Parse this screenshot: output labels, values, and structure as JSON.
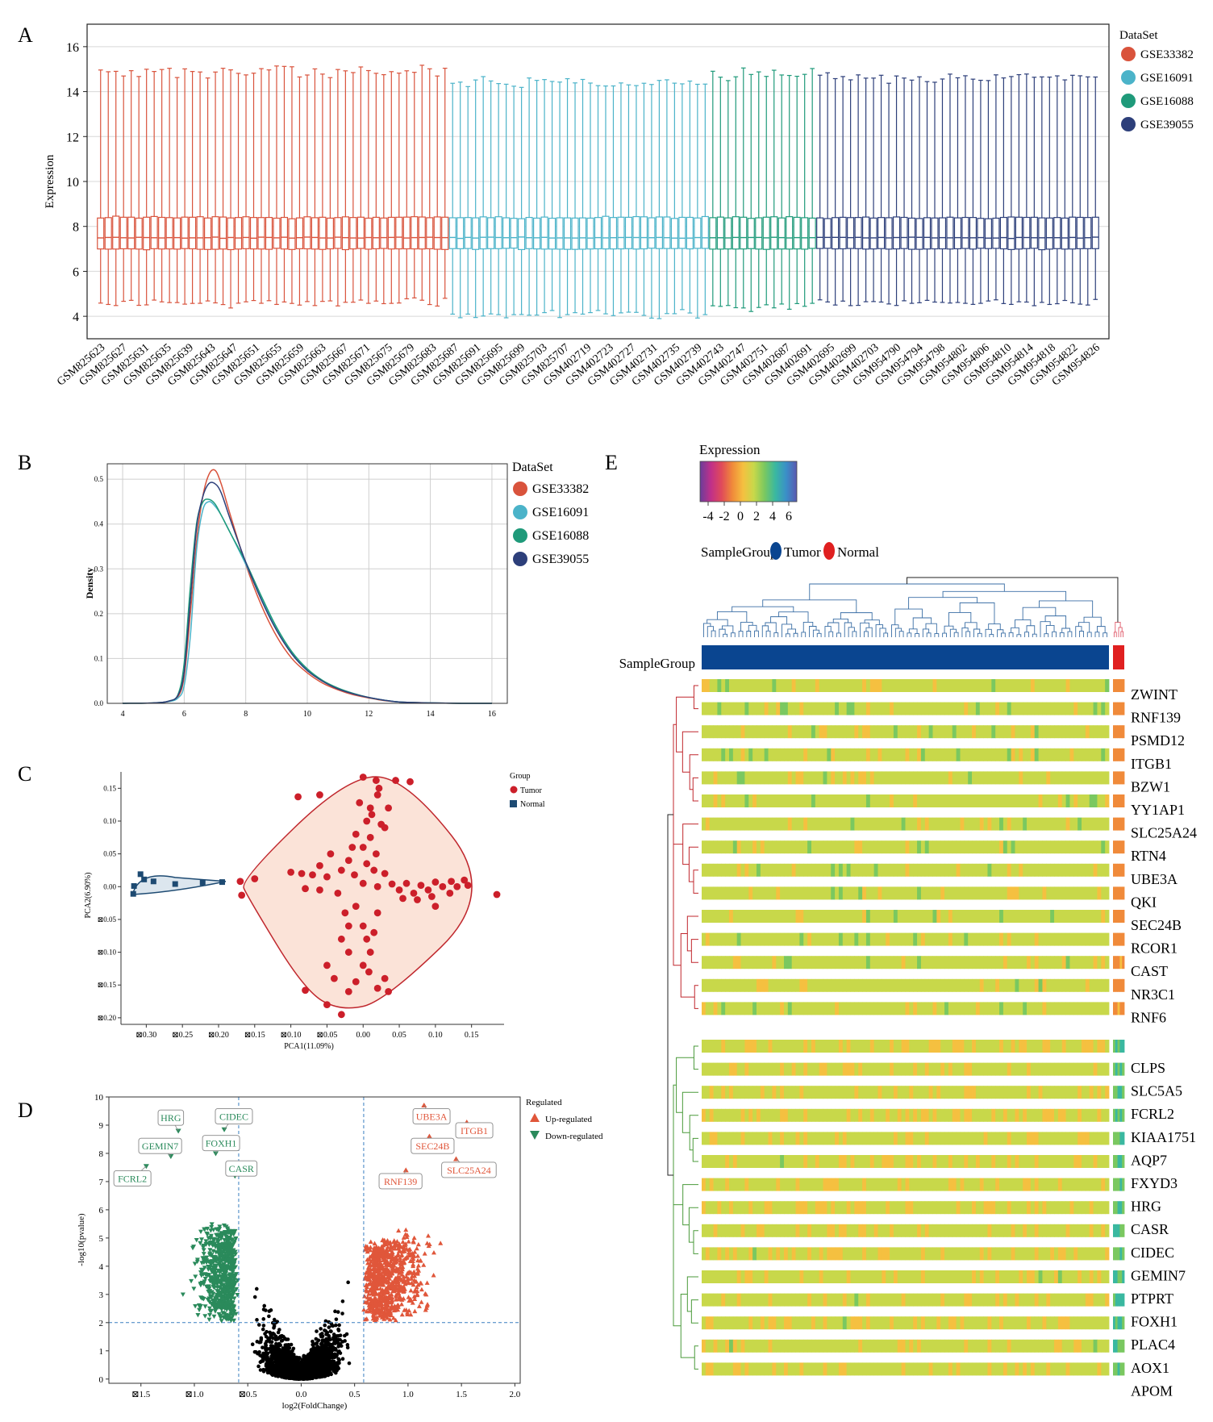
{
  "panels": {
    "a": {
      "label": "A"
    },
    "b": {
      "label": "B"
    },
    "c": {
      "label": "C"
    },
    "d": {
      "label": "D"
    },
    "e": {
      "label": "E"
    }
  },
  "colors": {
    "GSE33382": "#d9533c",
    "GSE16091": "#4bb3c9",
    "GSE16088": "#1f9a7a",
    "GSE39055": "#2d3f7a",
    "tumor": "#cc1f2a",
    "normal": "#1d4a72",
    "up": "#e0563a",
    "down": "#2a8a5b",
    "ns": "#000000",
    "sg_tumor": "#0a4590",
    "sg_normal": "#e02020",
    "dendro_up": "#c0272d",
    "dendro_down": "#4a9a3a",
    "col_dendro": "#3a6ea5"
  },
  "chart_data": [
    {
      "id": "A",
      "type": "box",
      "ylabel": "Expression",
      "ylim": [
        3,
        17
      ],
      "yticks": [
        4,
        6,
        8,
        10,
        12,
        14,
        16
      ],
      "legend": {
        "title": "DataSet",
        "entries": [
          "GSE33382",
          "GSE16091",
          "GSE16088",
          "GSE39055"
        ],
        "placement": "right"
      },
      "series": [
        {
          "name": "GSE33382",
          "count": 46,
          "whisker_low": 4.6,
          "q1": 7.0,
          "median": 7.5,
          "q3": 8.4,
          "whisker_high": 14.9
        },
        {
          "name": "GSE16091",
          "count": 34,
          "whisker_low": 4.1,
          "q1": 7.0,
          "median": 7.5,
          "q3": 8.4,
          "whisker_high": 14.4
        },
        {
          "name": "GSE16088",
          "count": 14,
          "whisker_low": 4.4,
          "q1": 7.0,
          "median": 7.5,
          "q3": 8.4,
          "whisker_high": 14.8
        },
        {
          "name": "GSE39055",
          "count": 37,
          "whisker_low": 4.6,
          "q1": 7.0,
          "median": 7.5,
          "q3": 8.4,
          "whisker_high": 14.6
        }
      ],
      "tick_labels": [
        "GSM825623",
        "GSM825627",
        "GSM825631",
        "GSM825635",
        "GSM825639",
        "GSM825643",
        "GSM825647",
        "GSM825651",
        "GSM825655",
        "GSM825659",
        "GSM825663",
        "GSM825667",
        "GSM825671",
        "GSM825675",
        "GSM825679",
        "GSM825683",
        "GSM825687",
        "GSM825691",
        "GSM825695",
        "GSM825699",
        "GSM825703",
        "GSM825707",
        "GSM402719",
        "GSM402723",
        "GSM402727",
        "GSM402731",
        "GSM402735",
        "GSM402739",
        "GSM402743",
        "GSM402747",
        "GSM402751",
        "GSM402687",
        "GSM402691",
        "GSM402695",
        "GSM402699",
        "GSM402703",
        "GSM954790",
        "GSM954794",
        "GSM954798",
        "GSM954802",
        "GSM954806",
        "GSM954810",
        "GSM954814",
        "GSM954818",
        "GSM954822",
        "GSM954826"
      ]
    },
    {
      "id": "B",
      "type": "line",
      "ylabel": "Density",
      "xlim": [
        3.5,
        16.5
      ],
      "ylim": [
        0,
        0.52
      ],
      "xticks": [
        4,
        6,
        8,
        10,
        12,
        14,
        16
      ],
      "yticks": [
        "0.0",
        "0.1",
        "0.2",
        "0.3",
        "0.4",
        "0.5"
      ],
      "legend": {
        "title": "DataSet",
        "entries": [
          "GSE33382",
          "GSE16091",
          "GSE16088",
          "GSE39055"
        ],
        "placement": "right"
      },
      "x": [
        4,
        5,
        5.5,
        5.8,
        6.0,
        6.2,
        6.4,
        6.6,
        6.8,
        7.0,
        7.2,
        7.5,
        8.0,
        8.5,
        9.0,
        9.5,
        10.0,
        10.5,
        11.0,
        11.5,
        12.0,
        12.5,
        13.0,
        14.0,
        15.0,
        16.0
      ],
      "series": [
        {
          "name": "GSE33382",
          "values": [
            0,
            0.001,
            0.004,
            0.015,
            0.06,
            0.2,
            0.36,
            0.46,
            0.51,
            0.52,
            0.49,
            0.42,
            0.31,
            0.22,
            0.15,
            0.1,
            0.068,
            0.045,
            0.03,
            0.019,
            0.012,
            0.006,
            0.003,
            0.001,
            0,
            0
          ]
        },
        {
          "name": "GSE16091",
          "values": [
            0,
            0.001,
            0.004,
            0.012,
            0.04,
            0.15,
            0.34,
            0.43,
            0.45,
            0.44,
            0.42,
            0.38,
            0.31,
            0.235,
            0.165,
            0.112,
            0.075,
            0.05,
            0.033,
            0.021,
            0.013,
            0.007,
            0.003,
            0.001,
            0,
            0
          ]
        },
        {
          "name": "GSE16088",
          "values": [
            0,
            0.001,
            0.005,
            0.02,
            0.09,
            0.26,
            0.4,
            0.448,
            0.455,
            0.445,
            0.42,
            0.38,
            0.315,
            0.24,
            0.17,
            0.115,
            0.077,
            0.051,
            0.034,
            0.022,
            0.013,
            0.007,
            0.003,
            0.001,
            0,
            0
          ]
        },
        {
          "name": "GSE39055",
          "values": [
            0,
            0.001,
            0.005,
            0.018,
            0.07,
            0.23,
            0.39,
            0.46,
            0.49,
            0.49,
            0.47,
            0.41,
            0.315,
            0.232,
            0.163,
            0.11,
            0.073,
            0.049,
            0.032,
            0.021,
            0.013,
            0.007,
            0.003,
            0.001,
            0,
            0
          ]
        }
      ]
    },
    {
      "id": "C",
      "type": "scatter",
      "xlabel": "PCA1(11.09%)",
      "ylabel": "PCA2(6.90%)",
      "xlim": [
        -0.335,
        0.195
      ],
      "ylim": [
        -0.21,
        0.175
      ],
      "xticks": [
        -0.3,
        -0.25,
        -0.2,
        -0.15,
        -0.1,
        -0.05,
        0,
        0.05,
        0.1,
        0.15
      ],
      "xtick_labels": [
        "⊠0.30",
        "⊠0.25",
        "⊠0.20",
        "⊠0.15",
        "⊠0.10",
        "⊠0.05",
        "0.00",
        "0.05",
        "0.10",
        "0.15"
      ],
      "yticks": [
        0.15,
        0.1,
        0.05,
        0,
        -0.05,
        -0.1,
        -0.15,
        -0.2
      ],
      "ytick_labels": [
        "0.15",
        "0.10",
        "0.05",
        "0.00",
        "⊠0.05",
        "⊠0.10",
        "⊠0.15",
        "⊠0.20"
      ],
      "legend": {
        "title": "Group",
        "entries": [
          "Tumor",
          "Normal"
        ],
        "placement": "right"
      },
      "series": [
        {
          "name": "Normal",
          "points": [
            [
              -0.318,
              -0.011
            ],
            [
              -0.317,
              0.001
            ],
            [
              -0.308,
              0.019
            ],
            [
              -0.26,
              0.004
            ],
            [
              -0.222,
              0.006
            ],
            [
              -0.195,
              0.007
            ],
            [
              -0.303,
              0.011
            ],
            [
              -0.29,
              0.008
            ]
          ]
        },
        {
          "name": "Tumor",
          "points": [
            [
              0.0,
              0.167
            ],
            [
              0.018,
              0.162
            ],
            [
              0.045,
              0.162
            ],
            [
              -0.15,
              0.012
            ],
            [
              -0.17,
              0.008
            ],
            [
              -0.168,
              -0.013
            ],
            [
              -0.1,
              0.022
            ],
            [
              -0.085,
              0.02
            ],
            [
              -0.07,
              0.018
            ],
            [
              -0.05,
              0.015
            ],
            [
              -0.06,
              0.032
            ],
            [
              -0.03,
              0.025
            ],
            [
              -0.02,
              0.04
            ],
            [
              -0.015,
              0.06
            ],
            [
              -0.01,
              0.08
            ],
            [
              0.005,
              0.1
            ],
            [
              0.01,
              0.12
            ],
            [
              0.02,
              0.14
            ],
            [
              -0.005,
              0.128
            ],
            [
              0.012,
              0.11
            ],
            [
              0.025,
              0.095
            ],
            [
              0.01,
              0.075
            ],
            [
              0.0,
              0.06
            ],
            [
              0.018,
              0.05
            ],
            [
              0.005,
              0.035
            ],
            [
              -0.012,
              0.018
            ],
            [
              0.0,
              0.005
            ],
            [
              0.02,
              0.0
            ],
            [
              0.05,
              -0.005
            ],
            [
              0.07,
              -0.01
            ],
            [
              0.09,
              -0.005
            ],
            [
              0.11,
              0.0
            ],
            [
              0.13,
              0.0
            ],
            [
              0.145,
              0.002
            ],
            [
              0.122,
              0.008
            ],
            [
              0.1,
              0.007
            ],
            [
              0.08,
              0.002
            ],
            [
              0.06,
              0.005
            ],
            [
              0.04,
              0.004
            ],
            [
              0.055,
              -0.018
            ],
            [
              0.075,
              -0.02
            ],
            [
              0.095,
              -0.015
            ],
            [
              -0.035,
              -0.01
            ],
            [
              -0.06,
              -0.005
            ],
            [
              -0.08,
              -0.003
            ],
            [
              -0.02,
              -0.06
            ],
            [
              -0.03,
              -0.08
            ],
            [
              -0.02,
              -0.1
            ],
            [
              -0.05,
              -0.12
            ],
            [
              -0.04,
              -0.14
            ],
            [
              -0.02,
              -0.16
            ],
            [
              0.0,
              -0.12
            ],
            [
              0.01,
              -0.1
            ],
            [
              0.005,
              -0.08
            ],
            [
              0.0,
              -0.06
            ],
            [
              0.02,
              -0.04
            ],
            [
              -0.01,
              -0.03
            ],
            [
              0.03,
              -0.14
            ],
            [
              0.02,
              -0.155
            ],
            [
              -0.03,
              -0.195
            ],
            [
              -0.05,
              -0.18
            ],
            [
              -0.08,
              -0.158
            ],
            [
              0.035,
              -0.16
            ],
            [
              0.185,
              -0.012
            ],
            [
              -0.09,
              0.137
            ],
            [
              -0.06,
              0.14
            ],
            [
              0.065,
              0.16
            ],
            [
              0.1,
              -0.03
            ],
            [
              0.12,
              -0.01
            ],
            [
              0.14,
              0.01
            ],
            [
              -0.045,
              0.05
            ],
            [
              0.03,
              0.02
            ],
            [
              0.035,
              0.12
            ],
            [
              0.015,
              0.025
            ],
            [
              -0.025,
              -0.04
            ],
            [
              0.008,
              -0.13
            ],
            [
              -0.01,
              -0.145
            ],
            [
              0.015,
              -0.07
            ],
            [
              0.022,
              0.15
            ],
            [
              0.03,
              0.09
            ]
          ]
        }
      ]
    },
    {
      "id": "D",
      "type": "scatter",
      "xlabel": "log2(FoldChange)",
      "ylabel": "-log10(pvalue)",
      "xlim": [
        -1.8,
        2.05
      ],
      "ylim": [
        -0.15,
        10
      ],
      "xticks": [
        -1.5,
        -1.0,
        -0.5,
        0.0,
        0.5,
        1.0,
        1.5,
        2.0
      ],
      "xtick_labels": [
        "⊠1.5",
        "⊠1.0",
        "⊠0.5",
        "0.0",
        "0.5",
        "1.0",
        "1.5",
        "2.0"
      ],
      "yticks": [
        0,
        1,
        2,
        3,
        4,
        5,
        6,
        7,
        8,
        9,
        10
      ],
      "thresholds": {
        "fc": [
          -0.585,
          0.585
        ],
        "p": 2
      },
      "legend": {
        "title": "Regulated",
        "entries": [
          "Up-regulated",
          "Down-regulated"
        ],
        "placement": "right"
      },
      "labeled_genes": [
        {
          "name": "HRG",
          "x": -1.15,
          "y": 8.8,
          "group": "down"
        },
        {
          "name": "CIDEC",
          "x": -0.72,
          "y": 8.85,
          "group": "down"
        },
        {
          "name": "GEMIN7",
          "x": -1.22,
          "y": 7.9,
          "group": "down"
        },
        {
          "name": "FOXH1",
          "x": -0.8,
          "y": 8.0,
          "group": "down"
        },
        {
          "name": "CASR",
          "x": -0.62,
          "y": 7.2,
          "group": "down"
        },
        {
          "name": "FCRL2",
          "x": -1.45,
          "y": 7.55,
          "group": "down"
        },
        {
          "name": "UBE3A",
          "x": 1.15,
          "y": 9.7,
          "group": "up"
        },
        {
          "name": "SEC24B",
          "x": 1.2,
          "y": 8.6,
          "group": "up"
        },
        {
          "name": "ITGB1",
          "x": 1.55,
          "y": 9.1,
          "group": "up"
        },
        {
          "name": "RNF139",
          "x": 0.98,
          "y": 7.4,
          "group": "up"
        },
        {
          "name": "SLC25A24",
          "x": 1.45,
          "y": 7.8,
          "group": "up"
        }
      ]
    },
    {
      "id": "E",
      "type": "heatmap",
      "legend_title": "Expression",
      "colorbar_ticks": [
        "-4",
        "-2",
        "0",
        "2",
        "4",
        "6"
      ],
      "colorbar_range": [
        -5,
        7
      ],
      "colorbar_stops": [
        "#6a3d9a",
        "#c0308a",
        "#e04a5a",
        "#f08a3a",
        "#f5c040",
        "#c8d84a",
        "#7ac860",
        "#3ab8a0",
        "#3a90c8",
        "#5a58b0"
      ],
      "samplegroup_label": "SampleGroup:",
      "samplegroup_entries": [
        "Tumor",
        "Normal"
      ],
      "row_annotation_label": "SampleGroup",
      "up_genes": [
        "ZWINT",
        "RNF139",
        "PSMD12",
        "ITGB1",
        "BZW1",
        "YY1AP1",
        "SLC25A24",
        "RTN4",
        "UBE3A",
        "QKI",
        "SEC24B",
        "RCOR1",
        "CAST",
        "NR3C1",
        "RNF6"
      ],
      "down_genes": [
        "CLPS",
        "SLC5A5",
        "FCRL2",
        "KIAA1751",
        "AQP7",
        "FXYD3",
        "HRG",
        "CASR",
        "CIDEC",
        "GEMIN7",
        "PTPRT",
        "FOXH1",
        "PLAC4",
        "AOX1",
        "APOM"
      ],
      "tumor_samples": 104,
      "normal_samples": 5
    }
  ]
}
